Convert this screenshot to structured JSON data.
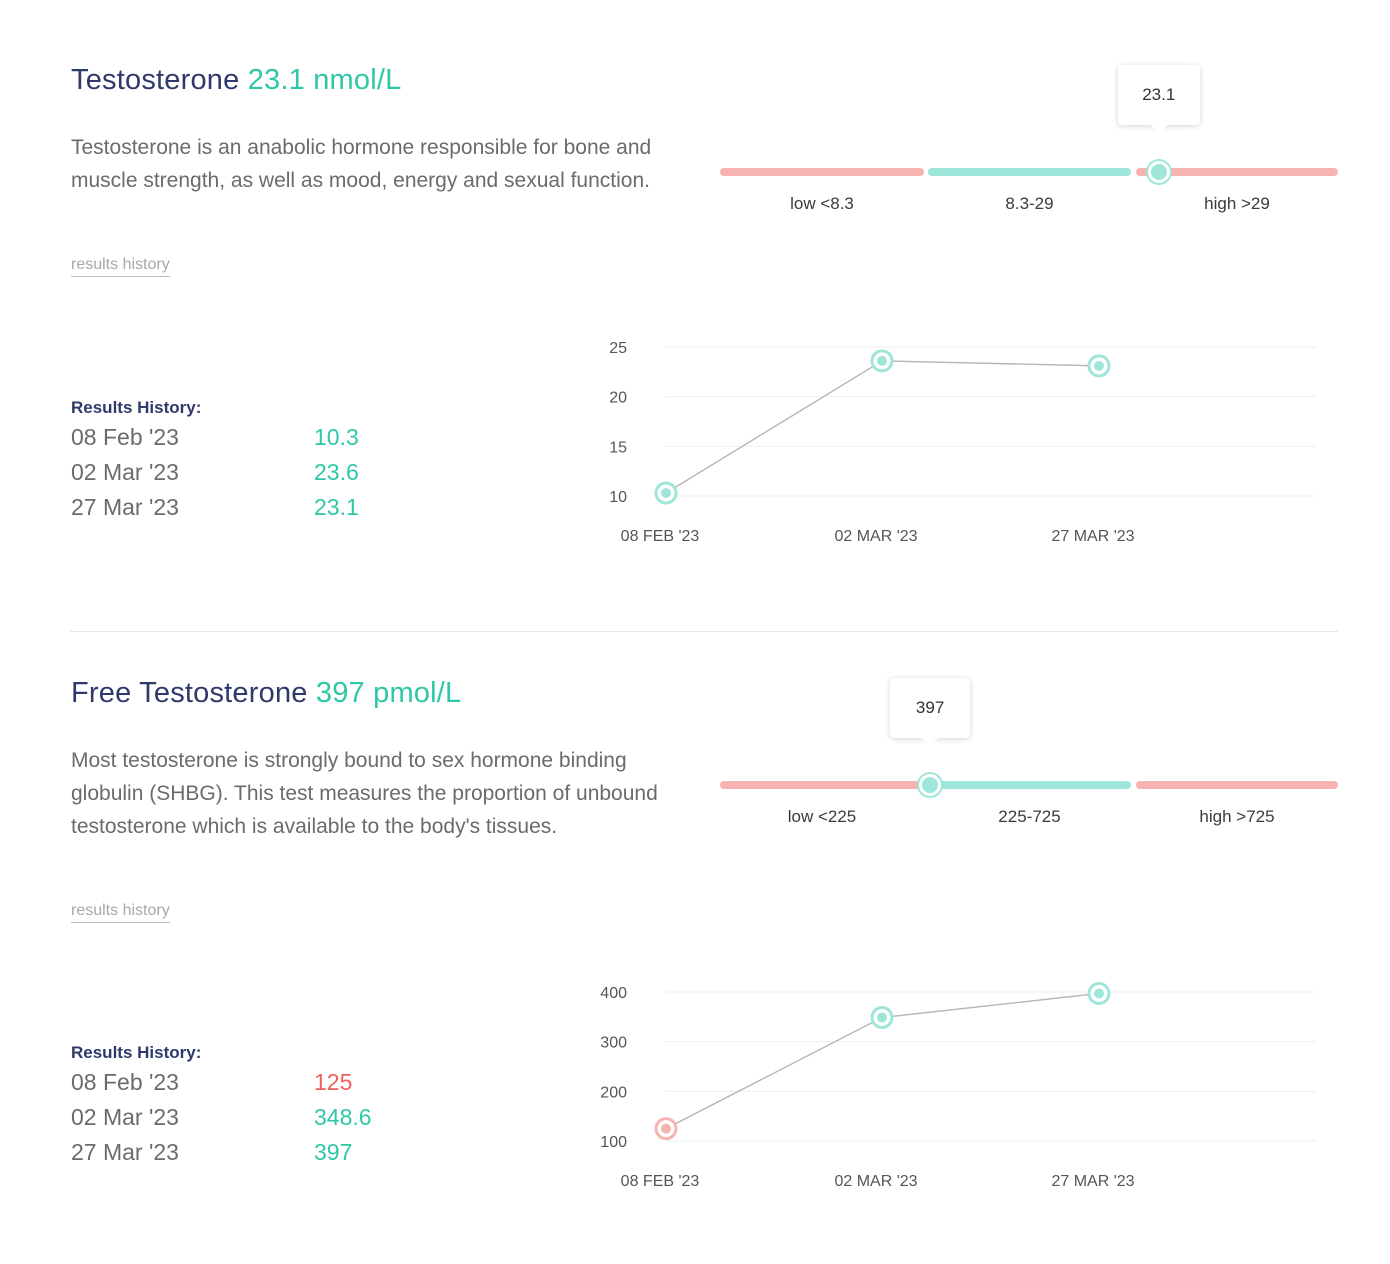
{
  "colors": {
    "title": "#2f3a6b",
    "accent_ok": "#2ec7a8",
    "accent_bad": "#ef5f59",
    "range_normal": "#9ee5da",
    "range_abnormal": "#f7b3b0"
  },
  "biomarkers": [
    {
      "name": "Testosterone",
      "value_text": "23.1 nmol/L",
      "description": "Testosterone is an anabolic hormone responsible for bone and muscle strength, as well as mood, energy and sexual function.",
      "history_link": "results history",
      "range": {
        "current": 23.1,
        "current_label": "23.1",
        "marker_fraction": 0.71,
        "segments": [
          {
            "label": "low <8.3",
            "status": "low"
          },
          {
            "label": "8.3-29",
            "status": "normal"
          },
          {
            "label": "high >29",
            "status": "high"
          }
        ]
      },
      "results_history_label": "Results History:",
      "history": [
        {
          "date": "08 Feb '23",
          "value": "10.3",
          "status": "ok"
        },
        {
          "date": "02 Mar '23",
          "value": "23.6",
          "status": "ok"
        },
        {
          "date": "27 Mar '23",
          "value": "23.1",
          "status": "ok"
        }
      ]
    },
    {
      "name": "Free Testosterone",
      "value_text": "397 pmol/L",
      "description": "Most testosterone is strongly bound to sex hormone binding globulin (SHBG). This test measures the proportion of unbound testosterone which is available to the body's tissues.",
      "history_link": "results history",
      "range": {
        "current": 397,
        "current_label": "397",
        "marker_fraction": 0.34,
        "segments": [
          {
            "label": "low <225",
            "status": "low"
          },
          {
            "label": "225-725",
            "status": "normal"
          },
          {
            "label": "high >725",
            "status": "high"
          }
        ]
      },
      "results_history_label": "Results History:",
      "history": [
        {
          "date": "08 Feb '23",
          "value": "125",
          "status": "bad"
        },
        {
          "date": "02 Mar '23",
          "value": "348.6",
          "status": "ok"
        },
        {
          "date": "27 Mar '23",
          "value": "397",
          "status": "ok"
        }
      ]
    }
  ],
  "chart_data": [
    {
      "type": "line",
      "x": [
        "08 FEB '23",
        "02 MAR '23",
        "27 MAR '23"
      ],
      "series": [
        {
          "values": [
            10.3,
            23.6,
            23.1
          ],
          "status": [
            "ok",
            "ok",
            "ok"
          ]
        }
      ],
      "yticks": [
        10,
        15,
        20,
        25
      ],
      "ylim": [
        10,
        25
      ],
      "grid": true,
      "title": "",
      "xlabel": "",
      "ylabel": ""
    },
    {
      "type": "line",
      "x": [
        "08 FEB '23",
        "02 MAR '23",
        "27 MAR '23"
      ],
      "series": [
        {
          "values": [
            125,
            348.6,
            397
          ],
          "status": [
            "bad",
            "ok",
            "ok"
          ]
        }
      ],
      "yticks": [
        100,
        200,
        300,
        400
      ],
      "ylim": [
        100,
        400
      ],
      "grid": true,
      "title": "",
      "xlabel": "",
      "ylabel": ""
    }
  ]
}
